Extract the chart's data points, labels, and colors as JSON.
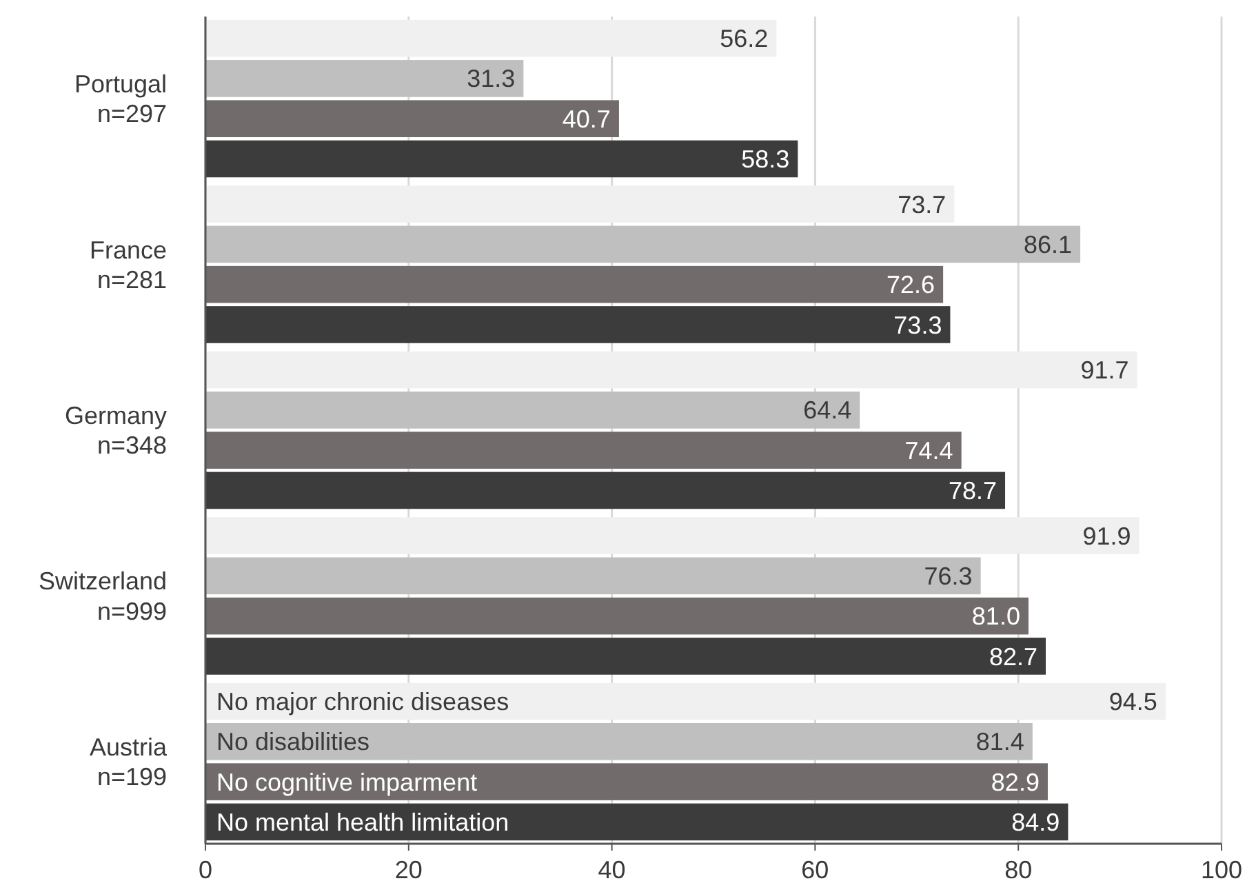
{
  "chart_data": {
    "type": "bar",
    "orientation": "horizontal",
    "categories": [
      "Portugal\nn=297",
      "France\nn=281",
      "Germany\nn=348",
      "Switzerland\nn=999",
      "Austria\nn=199"
    ],
    "series": [
      {
        "name": "No major chronic diseases",
        "color": "#f0f0f0",
        "values": [
          56.2,
          73.7,
          91.7,
          91.9,
          94.5
        ],
        "value_labels": [
          "56.2",
          "73.7",
          "91.7",
          "91.9",
          "94.5"
        ]
      },
      {
        "name": "No disabilities",
        "color": "#bfbfbf",
        "values": [
          31.3,
          86.1,
          64.4,
          76.3,
          81.4
        ],
        "value_labels": [
          "31.3",
          "86.1",
          "64.4",
          "76.3",
          "81.4"
        ]
      },
      {
        "name": "No cognitive imparment",
        "color": "#716c6b",
        "values": [
          40.7,
          72.6,
          74.4,
          81.0,
          82.9
        ],
        "value_labels": [
          "40.7",
          "72.6",
          "74.4",
          "81.0",
          "82.9"
        ]
      },
      {
        "name": "No mental health limitation",
        "color": "#3c3c3c",
        "values": [
          58.3,
          73.3,
          78.7,
          82.7,
          84.9
        ],
        "value_labels": [
          "58.3",
          "73.3",
          "78.7",
          "82.7",
          "84.9"
        ]
      }
    ],
    "xlim": [
      0,
      100
    ],
    "xticks": [
      0,
      20,
      40,
      60,
      80,
      100
    ],
    "grid": "x"
  }
}
